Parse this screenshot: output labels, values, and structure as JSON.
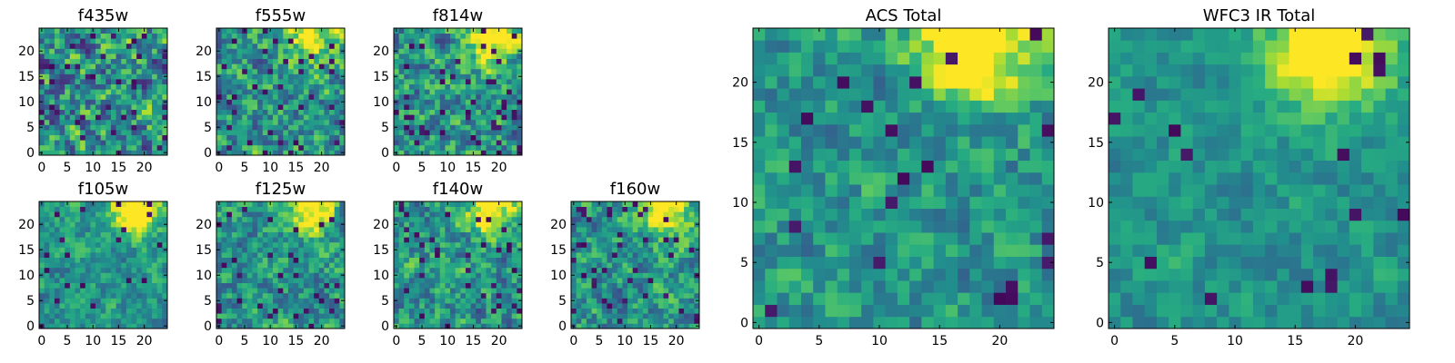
{
  "chart_data": [
    {
      "type": "heatmap",
      "title": "f435w",
      "seed": 11,
      "hotspot": 0.15,
      "noise": 0.55,
      "lowfrac": 0.07,
      "xticks": [
        0,
        5,
        10,
        15,
        20
      ],
      "yticks": [
        0,
        5,
        10,
        15,
        20
      ],
      "xlim": [
        0,
        25
      ],
      "ylim": [
        0,
        25
      ],
      "colormap": "viridis"
    },
    {
      "type": "heatmap",
      "title": "f555w",
      "seed": 23,
      "hotspot": 0.55,
      "noise": 0.45,
      "lowfrac": 0.06,
      "xticks": [
        0,
        5,
        10,
        15,
        20
      ],
      "yticks": [
        0,
        5,
        10,
        15,
        20
      ],
      "xlim": [
        0,
        25
      ],
      "ylim": [
        0,
        25
      ],
      "colormap": "viridis"
    },
    {
      "type": "heatmap",
      "title": "f814w",
      "seed": 37,
      "hotspot": 0.6,
      "noise": 0.45,
      "lowfrac": 0.08,
      "xticks": [
        0,
        5,
        10,
        15,
        20
      ],
      "yticks": [
        0,
        5,
        10,
        15,
        20
      ],
      "xlim": [
        0,
        25
      ],
      "ylim": [
        0,
        25
      ],
      "colormap": "viridis"
    },
    {
      "type": "heatmap",
      "title": "f105w",
      "seed": 41,
      "hotspot": 0.7,
      "noise": 0.3,
      "lowfrac": 0.04,
      "xticks": [
        0,
        5,
        10,
        15,
        20
      ],
      "yticks": [
        0,
        5,
        10,
        15,
        20
      ],
      "xlim": [
        0,
        25
      ],
      "ylim": [
        0,
        25
      ],
      "colormap": "viridis"
    },
    {
      "type": "heatmap",
      "title": "f125w",
      "seed": 53,
      "hotspot": 0.6,
      "noise": 0.38,
      "lowfrac": 0.04,
      "xticks": [
        0,
        5,
        10,
        15,
        20
      ],
      "yticks": [
        0,
        5,
        10,
        15,
        20
      ],
      "xlim": [
        0,
        25
      ],
      "ylim": [
        0,
        25
      ],
      "colormap": "viridis"
    },
    {
      "type": "heatmap",
      "title": "f140w",
      "seed": 67,
      "hotspot": 0.6,
      "noise": 0.4,
      "lowfrac": 0.05,
      "xticks": [
        0,
        5,
        10,
        15,
        20
      ],
      "yticks": [
        0,
        5,
        10,
        15,
        20
      ],
      "xlim": [
        0,
        25
      ],
      "ylim": [
        0,
        25
      ],
      "colormap": "viridis"
    },
    {
      "type": "heatmap",
      "title": "f160w",
      "seed": 79,
      "hotspot": 0.6,
      "noise": 0.38,
      "lowfrac": 0.06,
      "xticks": [
        0,
        5,
        10,
        15,
        20
      ],
      "yticks": [
        0,
        5,
        10,
        15,
        20
      ],
      "xlim": [
        0,
        25
      ],
      "ylim": [
        0,
        25
      ],
      "colormap": "viridis"
    },
    {
      "type": "heatmap",
      "title": "ACS Total",
      "seed": 97,
      "hotspot": 0.7,
      "noise": 0.32,
      "lowfrac": 0.03,
      "xticks": [
        0,
        5,
        10,
        15,
        20
      ],
      "yticks": [
        0,
        5,
        10,
        15,
        20
      ],
      "xlim": [
        0,
        25
      ],
      "ylim": [
        0,
        25
      ],
      "colormap": "viridis"
    },
    {
      "type": "heatmap",
      "title": "WFC3 IR Total",
      "seed": 131,
      "hotspot": 0.75,
      "noise": 0.22,
      "lowfrac": 0.03,
      "xticks": [
        0,
        5,
        10,
        15,
        20
      ],
      "yticks": [
        0,
        5,
        10,
        15,
        20
      ],
      "xlim": [
        0,
        25
      ],
      "ylim": [
        0,
        25
      ],
      "colormap": "viridis"
    }
  ]
}
